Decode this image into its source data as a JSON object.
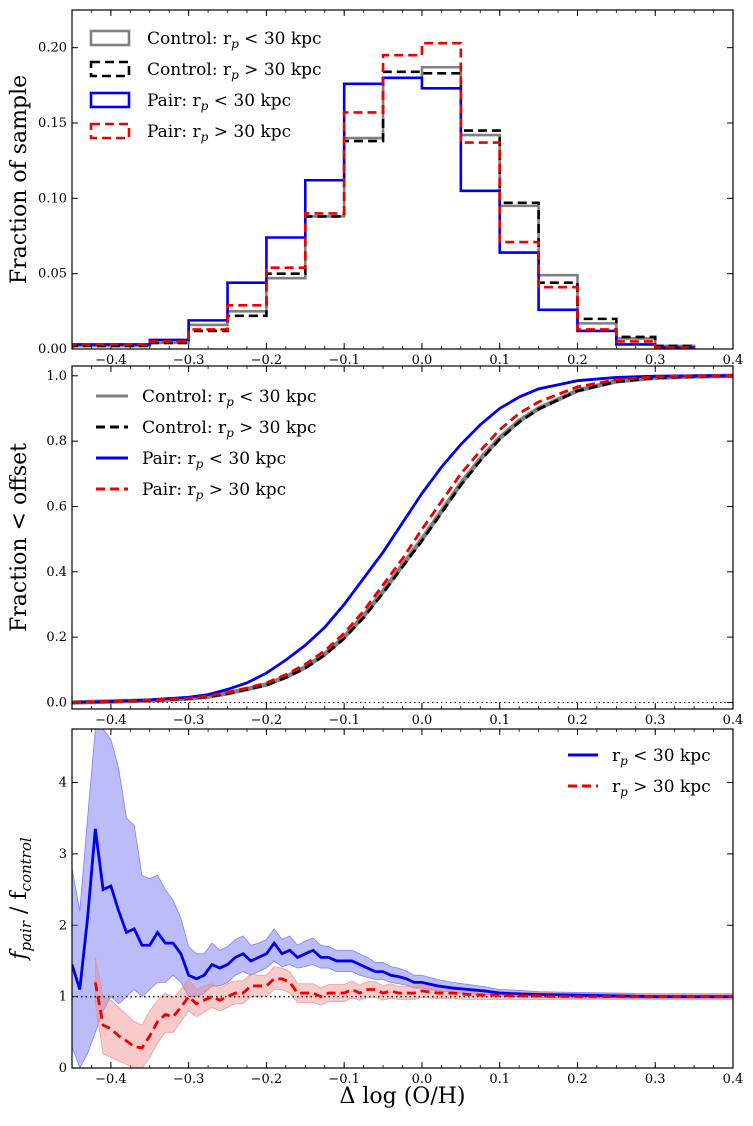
{
  "chart_data": [
    {
      "type": "histogram",
      "ylabel": "Fraction of sample",
      "xlim": [
        -0.45,
        0.4
      ],
      "ylim": [
        0,
        0.225
      ],
      "xticks": [
        "−0.4",
        "−0.3",
        "−0.2",
        "−0.1",
        "0.0",
        "0.1",
        "0.2",
        "0.3",
        "0.4"
      ],
      "yticks": [
        "0.00",
        "0.05",
        "0.10",
        "0.15",
        "0.20"
      ],
      "bin_edges": [
        -0.45,
        -0.35,
        -0.3,
        -0.25,
        -0.2,
        -0.15,
        -0.1,
        -0.05,
        0.0,
        0.05,
        0.1,
        0.15,
        0.2,
        0.25,
        0.3,
        0.35
      ],
      "series": [
        {
          "name": "Control: r",
          "name_sub": "p",
          "name_tail": " < 30 kpc",
          "color": "#808080",
          "style": "solid",
          "values": [
            0.002,
            0.004,
            0.016,
            0.025,
            0.047,
            0.088,
            0.14,
            0.18,
            0.187,
            0.142,
            0.095,
            0.049,
            0.017,
            0.007,
            0.002
          ]
        },
        {
          "name": "Control: r",
          "name_sub": "p",
          "name_tail": " > 30 kpc",
          "color": "#000000",
          "style": "dashed",
          "values": [
            0.002,
            0.004,
            0.012,
            0.022,
            0.05,
            0.088,
            0.138,
            0.184,
            0.183,
            0.145,
            0.097,
            0.044,
            0.02,
            0.008,
            0.002
          ]
        },
        {
          "name": "Pair: r",
          "name_sub": "p",
          "name_tail": " < 30 kpc",
          "color": "#0000ee",
          "style": "solid",
          "values": [
            0.003,
            0.006,
            0.019,
            0.044,
            0.074,
            0.112,
            0.176,
            0.18,
            0.173,
            0.105,
            0.064,
            0.026,
            0.012,
            0.003,
            0.001
          ]
        },
        {
          "name": "Pair: r",
          "name_sub": "p",
          "name_tail": " > 30 kpc",
          "color": "#ee0000",
          "style": "dashed",
          "values": [
            0.003,
            0.005,
            0.013,
            0.029,
            0.054,
            0.09,
            0.157,
            0.195,
            0.203,
            0.137,
            0.071,
            0.041,
            0.013,
            0.005,
            0.001
          ]
        }
      ]
    },
    {
      "type": "line",
      "ylabel": "Fraction < offset",
      "xlim": [
        -0.45,
        0.4
      ],
      "ylim": [
        -0.02,
        1.03
      ],
      "xticks": [
        "−0.4",
        "−0.3",
        "−0.2",
        "−0.1",
        "0.0",
        "0.1",
        "0.2",
        "0.3",
        "0.4"
      ],
      "yticks": [
        "0.0",
        "0.2",
        "0.4",
        "0.6",
        "0.8",
        "1.0"
      ],
      "reference_line": 0,
      "x": [
        -0.45,
        -0.4,
        -0.35,
        -0.3,
        -0.275,
        -0.25,
        -0.225,
        -0.2,
        -0.175,
        -0.15,
        -0.125,
        -0.1,
        -0.075,
        -0.05,
        -0.025,
        0.0,
        0.025,
        0.05,
        0.075,
        0.1,
        0.125,
        0.15,
        0.2,
        0.25,
        0.3,
        0.35,
        0.4
      ],
      "series": [
        {
          "name": "Control: r",
          "name_sub": "p",
          "name_tail": " < 30 kpc",
          "color": "#808080",
          "style": "solid",
          "values": [
            0.0,
            0.003,
            0.006,
            0.012,
            0.018,
            0.028,
            0.041,
            0.055,
            0.078,
            0.108,
            0.148,
            0.2,
            0.265,
            0.34,
            0.42,
            0.5,
            0.585,
            0.67,
            0.745,
            0.81,
            0.862,
            0.9,
            0.955,
            0.983,
            0.994,
            0.998,
            1.0
          ]
        },
        {
          "name": "Control: r",
          "name_sub": "p",
          "name_tail": " > 30 kpc",
          "color": "#000000",
          "style": "dashed",
          "values": [
            0.0,
            0.003,
            0.006,
            0.012,
            0.018,
            0.027,
            0.04,
            0.053,
            0.076,
            0.105,
            0.145,
            0.196,
            0.26,
            0.335,
            0.415,
            0.495,
            0.58,
            0.665,
            0.74,
            0.806,
            0.858,
            0.898,
            0.954,
            0.982,
            0.994,
            0.998,
            1.0
          ]
        },
        {
          "name": "Pair: r",
          "name_sub": "p",
          "name_tail": " < 30 kpc",
          "color": "#0000ee",
          "style": "solid",
          "values": [
            0.0,
            0.003,
            0.008,
            0.016,
            0.024,
            0.04,
            0.06,
            0.09,
            0.13,
            0.175,
            0.23,
            0.3,
            0.38,
            0.46,
            0.55,
            0.64,
            0.72,
            0.79,
            0.85,
            0.9,
            0.935,
            0.96,
            0.985,
            0.995,
            0.999,
            1.0,
            1.0
          ]
        },
        {
          "name": "Pair: r",
          "name_sub": "p",
          "name_tail": " > 30 kpc",
          "color": "#ee0000",
          "style": "dashed",
          "values": [
            0.0,
            0.003,
            0.007,
            0.013,
            0.02,
            0.031,
            0.044,
            0.06,
            0.085,
            0.117,
            0.158,
            0.212,
            0.28,
            0.36,
            0.44,
            0.53,
            0.615,
            0.7,
            0.77,
            0.835,
            0.885,
            0.92,
            0.966,
            0.988,
            0.997,
            0.999,
            1.0
          ]
        }
      ]
    },
    {
      "type": "line",
      "xlabel": "Δ log (O/H)",
      "ylabel_main": "f",
      "ylabel_sub1": "pair",
      "ylabel_mid": " / f",
      "ylabel_sub2": "control",
      "xlim": [
        -0.45,
        0.4
      ],
      "ylim": [
        0,
        4.75
      ],
      "xticks": [
        "−0.4",
        "−0.3",
        "−0.2",
        "−0.1",
        "0.0",
        "0.1",
        "0.2",
        "0.3",
        "0.4"
      ],
      "yticks": [
        "0",
        "1",
        "2",
        "3",
        "4"
      ],
      "reference_line": 1,
      "series": [
        {
          "name": "r",
          "name_sub": "p",
          "name_tail": " < 30 kpc",
          "color": "#0000ee",
          "style": "solid",
          "band_color": "#6a6af0",
          "x": [
            -0.45,
            -0.44,
            -0.43,
            -0.42,
            -0.41,
            -0.4,
            -0.39,
            -0.38,
            -0.37,
            -0.36,
            -0.35,
            -0.34,
            -0.33,
            -0.32,
            -0.31,
            -0.3,
            -0.29,
            -0.28,
            -0.27,
            -0.26,
            -0.25,
            -0.24,
            -0.23,
            -0.22,
            -0.21,
            -0.2,
            -0.19,
            -0.18,
            -0.17,
            -0.16,
            -0.15,
            -0.14,
            -0.13,
            -0.12,
            -0.11,
            -0.1,
            -0.09,
            -0.08,
            -0.07,
            -0.06,
            -0.05,
            -0.04,
            -0.03,
            -0.02,
            -0.01,
            0.0,
            0.02,
            0.04,
            0.06,
            0.08,
            0.1,
            0.12,
            0.15,
            0.2,
            0.25,
            0.3,
            0.35,
            0.4
          ],
          "values": [
            1.45,
            1.1,
            2.1,
            3.35,
            2.5,
            2.55,
            2.2,
            1.9,
            1.95,
            1.72,
            1.72,
            1.9,
            1.75,
            1.75,
            1.6,
            1.3,
            1.25,
            1.3,
            1.45,
            1.4,
            1.45,
            1.55,
            1.6,
            1.5,
            1.55,
            1.6,
            1.75,
            1.6,
            1.65,
            1.55,
            1.6,
            1.65,
            1.55,
            1.55,
            1.5,
            1.5,
            1.5,
            1.45,
            1.4,
            1.35,
            1.35,
            1.3,
            1.28,
            1.25,
            1.2,
            1.2,
            1.15,
            1.12,
            1.1,
            1.08,
            1.05,
            1.04,
            1.03,
            1.02,
            1.01,
            1.0,
            1.0,
            1.0
          ],
          "lower": [
            0.3,
            0.0,
            0.2,
            0.5,
            0.8,
            1.0,
            0.9,
            1.0,
            1.1,
            1.0,
            1.1,
            1.2,
            1.2,
            1.3,
            1.2,
            1.0,
            1.0,
            1.05,
            1.15,
            1.15,
            1.2,
            1.3,
            1.35,
            1.3,
            1.35,
            1.4,
            1.5,
            1.42,
            1.45,
            1.4,
            1.42,
            1.45,
            1.4,
            1.4,
            1.35,
            1.35,
            1.35,
            1.3,
            1.27,
            1.24,
            1.24,
            1.2,
            1.18,
            1.16,
            1.12,
            1.12,
            1.08,
            1.06,
            1.04,
            1.03,
            1.01,
            1.0,
            0.99,
            0.98,
            0.98,
            0.97,
            0.97,
            0.97
          ],
          "upper": [
            2.8,
            2.2,
            3.5,
            4.75,
            4.75,
            4.6,
            4.2,
            3.5,
            3.4,
            2.7,
            2.65,
            2.7,
            2.5,
            2.35,
            2.1,
            1.7,
            1.6,
            1.6,
            1.75,
            1.65,
            1.7,
            1.8,
            1.85,
            1.72,
            1.75,
            1.8,
            1.95,
            1.8,
            1.85,
            1.72,
            1.78,
            1.82,
            1.72,
            1.7,
            1.65,
            1.65,
            1.65,
            1.6,
            1.55,
            1.48,
            1.48,
            1.42,
            1.4,
            1.36,
            1.3,
            1.3,
            1.24,
            1.2,
            1.17,
            1.14,
            1.1,
            1.09,
            1.07,
            1.06,
            1.05,
            1.04,
            1.04,
            1.04
          ]
        },
        {
          "name": "r",
          "name_sub": "p",
          "name_tail": " > 30 kpc",
          "color": "#ee0000",
          "style": "dashed",
          "band_color": "#f08a8a",
          "x": [
            -0.42,
            -0.41,
            -0.4,
            -0.39,
            -0.38,
            -0.37,
            -0.36,
            -0.35,
            -0.34,
            -0.33,
            -0.32,
            -0.31,
            -0.3,
            -0.29,
            -0.28,
            -0.27,
            -0.26,
            -0.25,
            -0.24,
            -0.23,
            -0.22,
            -0.21,
            -0.2,
            -0.19,
            -0.18,
            -0.17,
            -0.16,
            -0.15,
            -0.14,
            -0.13,
            -0.12,
            -0.11,
            -0.1,
            -0.09,
            -0.08,
            -0.07,
            -0.06,
            -0.05,
            -0.04,
            -0.03,
            -0.02,
            -0.01,
            0.0,
            0.02,
            0.04,
            0.06,
            0.08,
            0.1,
            0.12,
            0.15,
            0.2,
            0.25,
            0.3,
            0.35,
            0.4
          ],
          "values": [
            1.2,
            0.6,
            0.55,
            0.45,
            0.38,
            0.3,
            0.28,
            0.45,
            0.65,
            0.75,
            0.72,
            0.85,
            1.0,
            0.9,
            0.95,
            1.0,
            0.95,
            1.0,
            1.05,
            1.05,
            1.15,
            1.15,
            1.15,
            1.25,
            1.25,
            1.2,
            1.05,
            1.05,
            1.05,
            1.0,
            1.05,
            1.05,
            1.05,
            1.1,
            1.05,
            1.1,
            1.1,
            1.05,
            1.08,
            1.05,
            1.05,
            1.05,
            1.08,
            1.05,
            1.05,
            1.03,
            1.02,
            1.02,
            1.01,
            1.01,
            1.0,
            1.0,
            1.0,
            1.0,
            1.0
          ],
          "lower": [
            0.9,
            0.2,
            0.15,
            0.1,
            0.05,
            0.0,
            0.0,
            0.15,
            0.35,
            0.5,
            0.5,
            0.65,
            0.8,
            0.72,
            0.78,
            0.85,
            0.8,
            0.85,
            0.9,
            0.9,
            1.0,
            1.0,
            1.0,
            1.1,
            1.1,
            1.05,
            0.92,
            0.92,
            0.92,
            0.88,
            0.93,
            0.93,
            0.93,
            0.98,
            0.95,
            0.99,
            0.99,
            0.95,
            0.98,
            0.96,
            0.96,
            0.96,
            0.99,
            0.97,
            0.97,
            0.96,
            0.96,
            0.96,
            0.96,
            0.96,
            0.96,
            0.96,
            0.96,
            0.96,
            0.96
          ],
          "upper": [
            1.55,
            1.0,
            0.95,
            0.85,
            0.75,
            0.65,
            0.6,
            0.8,
            0.95,
            1.05,
            0.98,
            1.1,
            1.25,
            1.1,
            1.15,
            1.18,
            1.12,
            1.18,
            1.22,
            1.22,
            1.32,
            1.3,
            1.3,
            1.42,
            1.4,
            1.35,
            1.18,
            1.18,
            1.18,
            1.12,
            1.17,
            1.17,
            1.17,
            1.22,
            1.16,
            1.21,
            1.21,
            1.15,
            1.18,
            1.14,
            1.14,
            1.14,
            1.17,
            1.13,
            1.13,
            1.1,
            1.08,
            1.08,
            1.06,
            1.06,
            1.04,
            1.04,
            1.04,
            1.04,
            1.04
          ]
        }
      ]
    }
  ]
}
